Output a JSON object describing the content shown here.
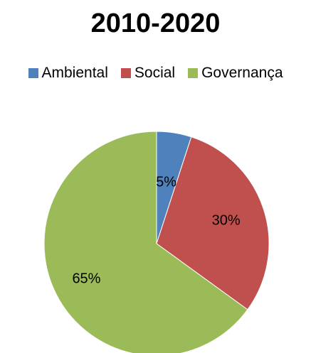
{
  "chart_data": {
    "type": "pie",
    "title": "2010-2020",
    "legend_position": "top",
    "categories": [
      "Ambiental",
      "Social",
      "Governança"
    ],
    "values": [
      5,
      30,
      65
    ],
    "labels": [
      "5%",
      "30%",
      "65%"
    ],
    "colors": [
      "#4F81BD",
      "#C0504D",
      "#9BBB59"
    ]
  }
}
